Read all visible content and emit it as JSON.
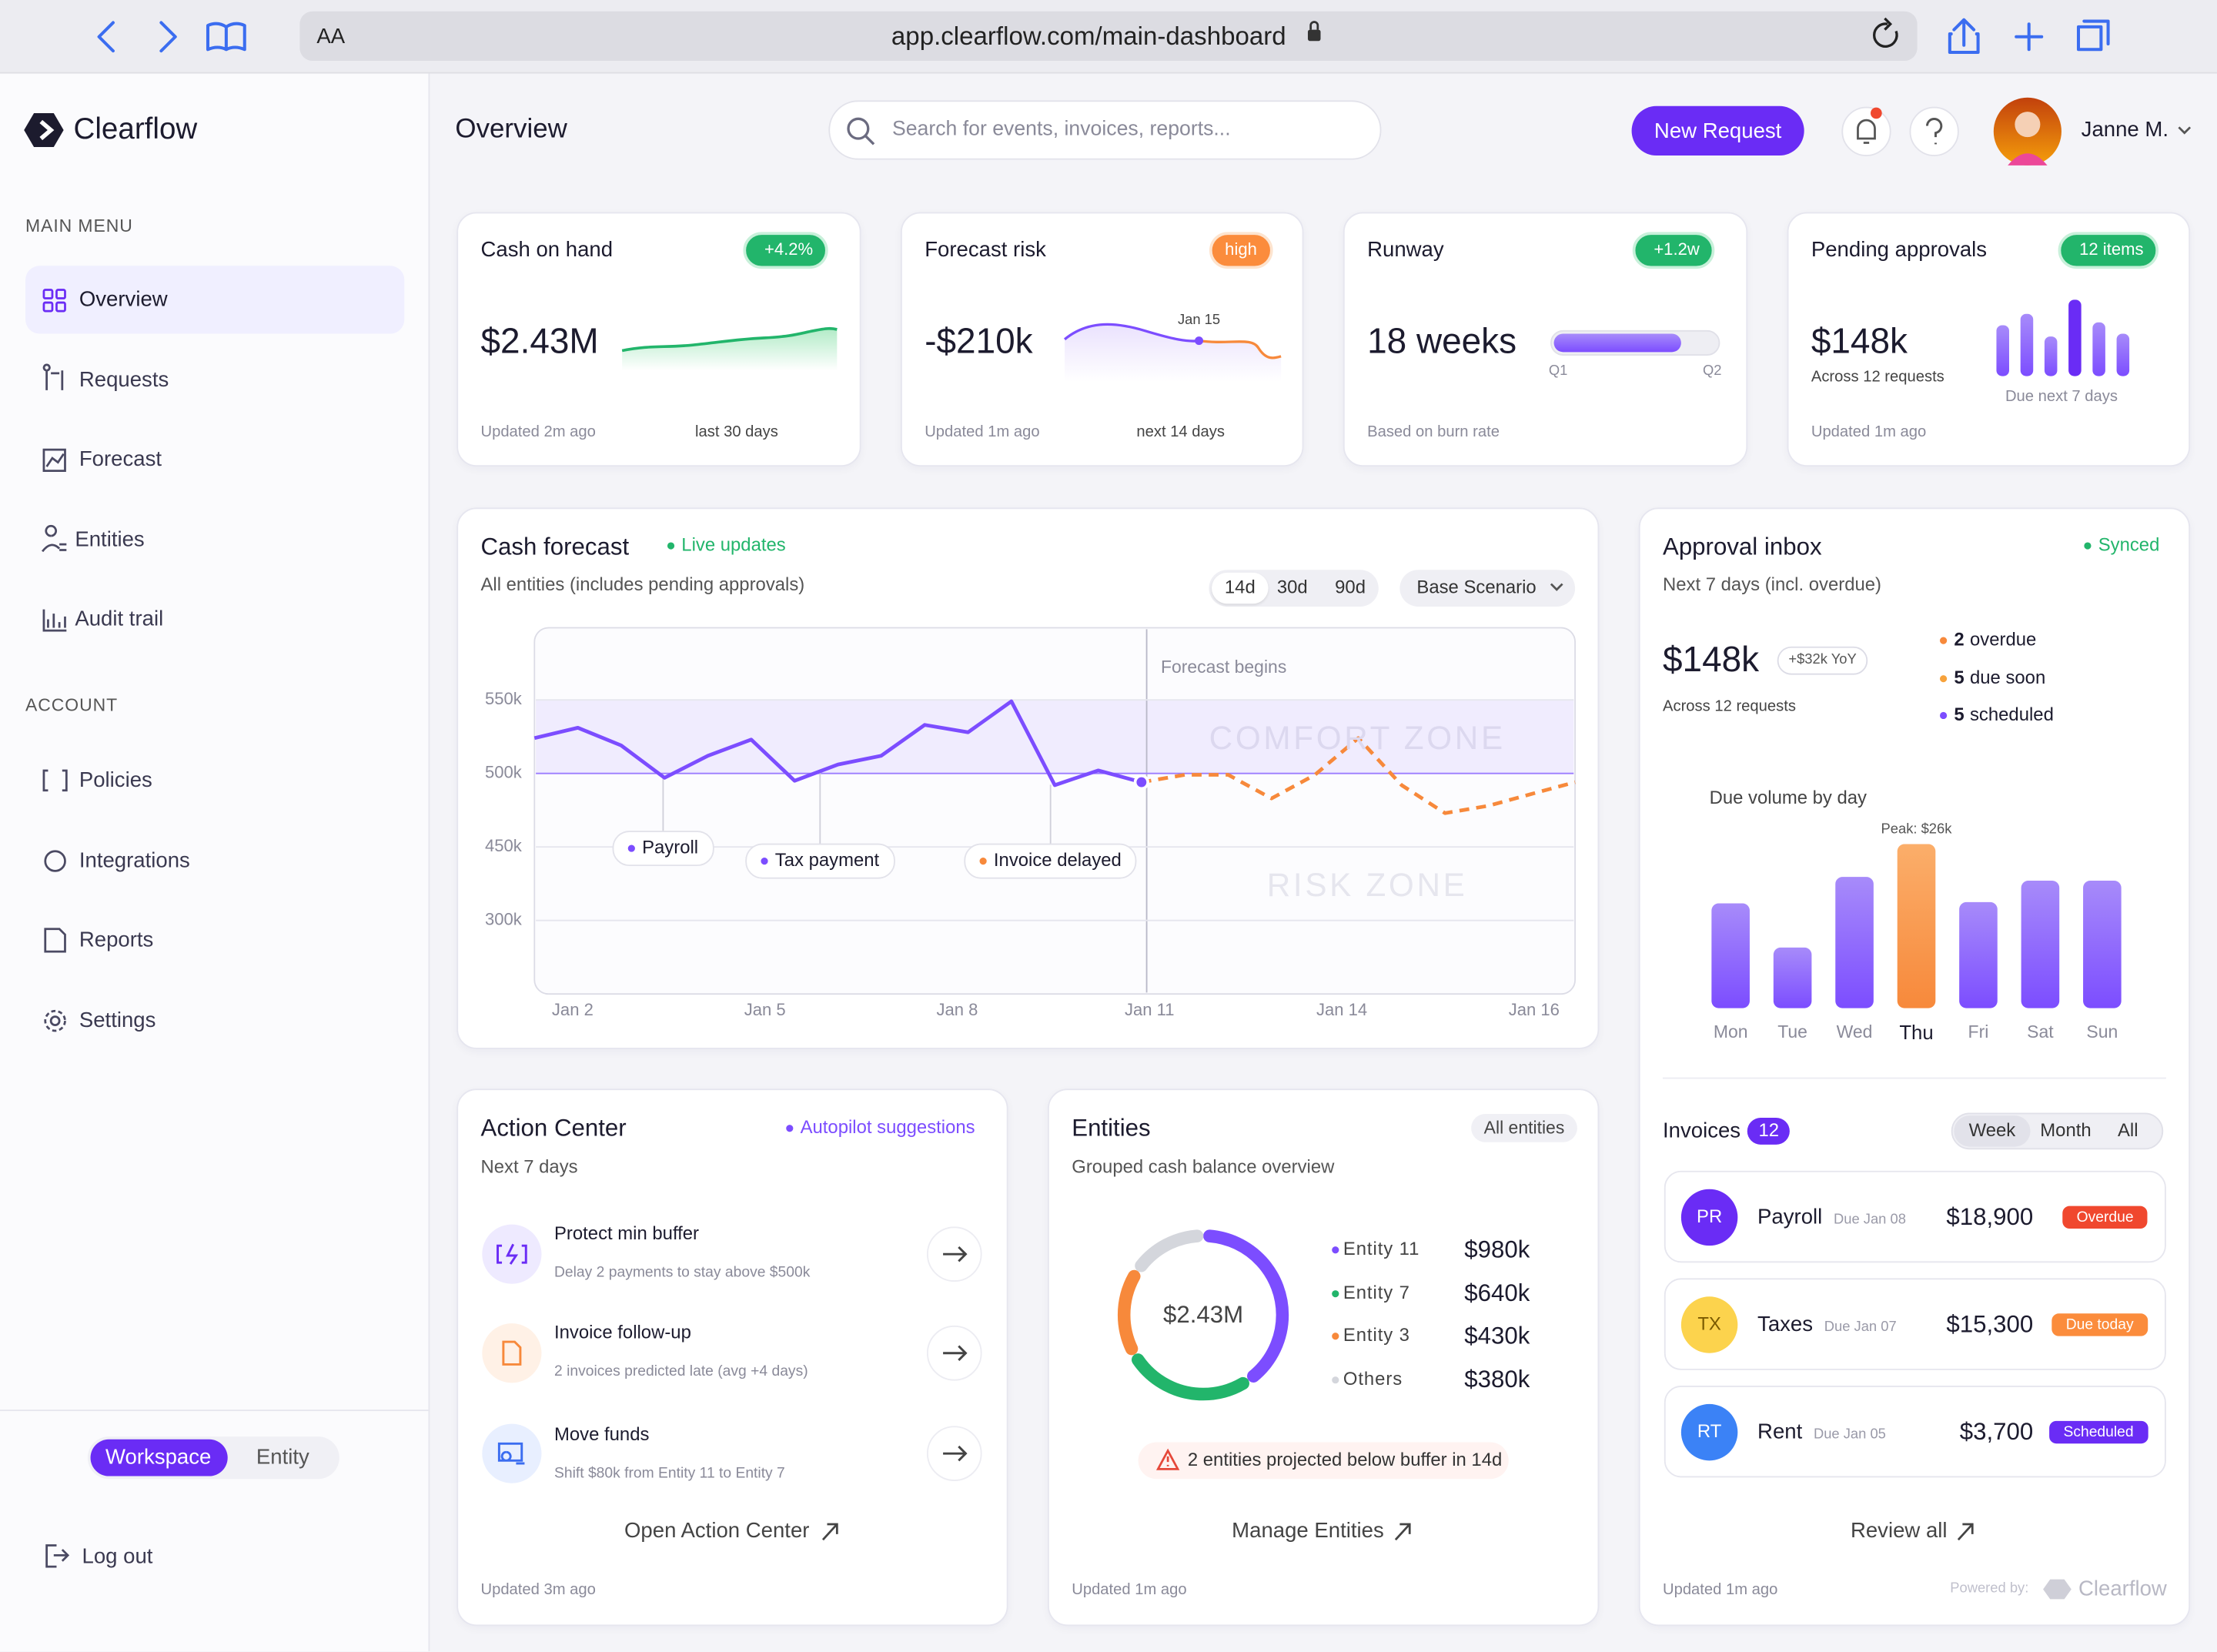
{
  "browser": {
    "text_size": "AA",
    "url": "app.clearflow.com/main-dashboard"
  },
  "sidebar": {
    "brand": "Clearflow",
    "main_menu_title": "MAIN MENU",
    "main_menu": [
      "Overview",
      "Requests",
      "Forecast",
      "Entities",
      "Audit trail"
    ],
    "account_title": "ACCOUNT",
    "account_menu": [
      "Policies",
      "Integrations",
      "Reports",
      "Settings"
    ],
    "toggle": [
      "Workspace",
      "Entity"
    ],
    "logout": "Log out"
  },
  "header": {
    "title": "Overview",
    "search_placeholder": "Search for events, invoices, reports...",
    "new_request": "New Request",
    "user": "Janne M."
  },
  "kpis": [
    {
      "title": "Cash on hand",
      "badge": "+4.2%",
      "value": "$2.43M",
      "updated": "Updated 2m ago",
      "note": "last 30 days"
    },
    {
      "title": "Forecast risk",
      "badge": "high",
      "value": "-$210k",
      "marker": "Jan 15",
      "updated": "Updated 1m ago",
      "note": "next 14 days"
    },
    {
      "title": "Runway",
      "badge": "+1.2w",
      "value": "18 weeks",
      "start": "Q1",
      "end": "Q2",
      "updated": "Based on burn rate"
    },
    {
      "title": "Pending approvals",
      "badge": "12 items",
      "value": "$148k",
      "sub": "Across 12 requests",
      "note": "Due next 7 days",
      "updated": "Updated 1m ago"
    }
  ],
  "cash_forecast": {
    "title": "Cash forecast",
    "status": "Live updates",
    "subtitle": "All entities (includes pending approvals)",
    "ranges": [
      "14d",
      "30d",
      "90d"
    ],
    "scenario": "Base Scenario",
    "chart": {
      "type": "line",
      "x_labels": [
        "Jan 2",
        "Jan 5",
        "Jan 8",
        "Jan 11",
        "Jan 14",
        "Jan 16"
      ],
      "y_labels": [
        "550k",
        "500k",
        "450k",
        "300k"
      ],
      "ylim": [
        350,
        599
      ],
      "forecast_label": "Forecast begins",
      "zones": [
        "COMFORT ZONE",
        "RISK ZONE"
      ],
      "events": [
        "Payroll",
        "Tax payment",
        "Invoice delayed"
      ],
      "series": [
        {
          "color": "#7c4dff",
          "style": "solid",
          "values": [
            524,
            531,
            519,
            497,
            512,
            523,
            495,
            506,
            512,
            533,
            528,
            549,
            492,
            502,
            494,
            null,
            null,
            null,
            null,
            null,
            null,
            null,
            null,
            null,
            null
          ]
        },
        {
          "color": "#f7893b",
          "style": "dashed",
          "values": [
            null,
            null,
            null,
            null,
            null,
            null,
            null,
            null,
            null,
            null,
            null,
            null,
            null,
            null,
            494,
            499,
            499,
            483,
            499,
            524,
            492,
            473,
            478,
            486,
            494
          ]
        }
      ]
    }
  },
  "approval_inbox": {
    "title": "Approval inbox",
    "status": "Synced",
    "subtitle": "Next 7 days (incl. overdue)",
    "total": "$148k",
    "change": "+$32k YoY",
    "note": "Across 12 requests",
    "legend": [
      {
        "count": "2",
        "label": "overdue",
        "color": "#f7893b"
      },
      {
        "count": "5",
        "label": "due soon",
        "color": "#f7a23b"
      },
      {
        "count": "5",
        "label": "scheduled",
        "color": "#7c4dff"
      }
    ],
    "chart": {
      "type": "bar",
      "title": "Due volume by day",
      "categories": [
        "Mon",
        "Tue",
        "Wed",
        "Thu",
        "Fri",
        "Sat",
        "Sun"
      ],
      "values": [
        16.6,
        9.6,
        20.8,
        26,
        16.8,
        20.2,
        20.2
      ],
      "peak_label": "Peak: $26k",
      "color": "#8b5cf6",
      "highlight_color": "#f7893b"
    },
    "invoices": {
      "title": "Invoices",
      "count": "12",
      "tabs": [
        "Week",
        "Month",
        "All"
      ],
      "rows": [
        {
          "initials": "PR",
          "name": "Payroll",
          "due": "Due Jan 08",
          "amount": "$18,900",
          "status": "Overdue",
          "avatar_color": "#6a2cf5",
          "status_color": "#f0482e"
        },
        {
          "initials": "TX",
          "name": "Taxes",
          "due": "Due Jan 07",
          "amount": "$15,300",
          "status": "Due today",
          "avatar_color": "#fcd34d",
          "status_color": "#fb8c3c"
        },
        {
          "initials": "RT",
          "name": "Rent",
          "due": "Due Jan 05",
          "amount": "$3,700",
          "status": "Scheduled",
          "avatar_color": "#3b82f6",
          "status_color": "#6a2cf5"
        }
      ],
      "review": "Review all"
    },
    "updated": "Updated 1m ago",
    "powered": "Powered by:",
    "brand": "Clearflow"
  },
  "action_center": {
    "title": "Action Center",
    "status": "Autopilot suggestions",
    "subtitle": "Next 7 days",
    "items": [
      {
        "title": "Protect min buffer",
        "detail": "Delay 2 payments to stay above $500k"
      },
      {
        "title": "Invoice follow-up",
        "detail": "2 invoices predicted late (avg +4 days)"
      },
      {
        "title": "Move funds",
        "detail": "Shift $80k from Entity 11 to Entity 7"
      }
    ],
    "link": "Open Action Center",
    "updated": "Updated 3m ago"
  },
  "entities": {
    "title": "Entities",
    "filter": "All entities",
    "subtitle": "Grouped cash balance overview",
    "chart": {
      "type": "donut",
      "center": "$2.43M",
      "categories": [
        "Entity 11",
        "Entity 7",
        "Entity 3",
        "Others"
      ],
      "values": [
        980,
        640,
        430,
        380
      ],
      "value_labels": [
        "$980k",
        "$640k",
        "$430k",
        "$380k"
      ],
      "colors": [
        "#7c4dff",
        "#22b56b",
        "#f7893b",
        "#d4d6dc"
      ]
    },
    "warning": "2 entities projected below buffer in 14d",
    "link": "Manage Entities",
    "updated": "Updated 1m ago"
  }
}
